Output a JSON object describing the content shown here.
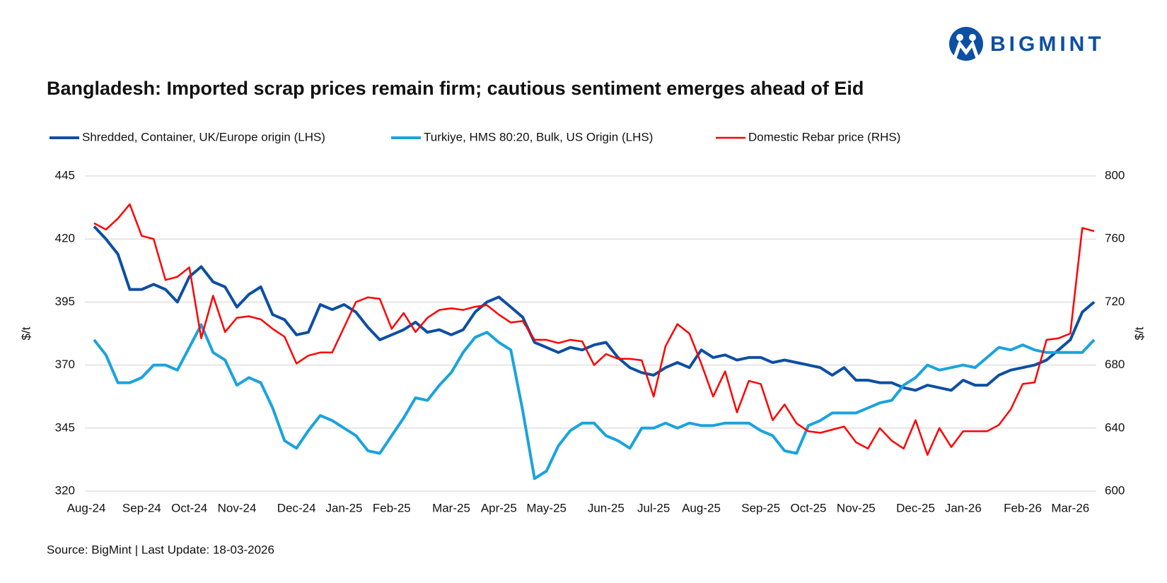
{
  "chart_data": {
    "type": "line",
    "logo": "BIGMINT",
    "title": "Bangladesh: Imported scrap prices remain firm; cautious sentiment emerges ahead of Eid",
    "source": "Source: BigMint | Last Update: 18-03-2026",
    "ylabel": "$/t",
    "y2label": "$/t",
    "categories": [
      "Aug-24",
      null,
      null,
      null,
      "Sep-24",
      null,
      null,
      null,
      "Oct-24",
      null,
      null,
      null,
      "Nov-24",
      null,
      null,
      null,
      null,
      "Dec-24",
      null,
      null,
      null,
      "Jan-25",
      null,
      null,
      null,
      "Feb-25",
      null,
      null,
      null,
      null,
      "Mar-25",
      null,
      null,
      null,
      "Apr-25",
      null,
      null,
      null,
      "May-25",
      null,
      null,
      null,
      null,
      "Jun-25",
      null,
      null,
      null,
      "Jul-25",
      null,
      null,
      null,
      "Aug-25",
      null,
      null,
      null,
      null,
      "Sep-25",
      null,
      null,
      null,
      "Oct-25",
      null,
      null,
      null,
      "Nov-25",
      null,
      null,
      null,
      null,
      "Dec-25",
      null,
      null,
      null,
      "Jan-26",
      null,
      null,
      null,
      null,
      "Feb-26",
      null,
      null,
      null,
      "Mar-26",
      null,
      null
    ],
    "series": [
      {
        "name": "Shredded, Container, UK/Europe origin (LHS)",
        "color": "#0d4fa3",
        "axis": "y",
        "values": [
          425,
          420,
          414,
          400,
          400,
          402,
          400,
          395,
          405,
          409,
          403,
          401,
          393,
          398,
          401,
          390,
          388,
          382,
          383,
          394,
          392,
          394,
          391,
          385,
          380,
          382,
          384,
          387,
          383,
          384,
          382,
          384,
          391,
          395,
          397,
          393,
          389,
          379,
          377,
          375,
          377,
          376,
          378,
          379,
          373,
          369,
          367,
          366,
          369,
          371,
          369,
          376,
          373,
          374,
          372,
          373,
          373,
          371,
          372,
          371,
          370,
          369,
          366,
          369,
          364,
          364,
          363,
          363,
          361,
          360,
          362,
          361,
          360,
          364,
          362,
          362,
          366,
          368,
          369,
          370,
          372,
          376,
          380,
          391,
          395
        ]
      },
      {
        "name": "Turkiye, HMS 80:20, Bulk, US Origin (LHS)",
        "color": "#1aa3dd",
        "axis": "y",
        "values": [
          380,
          374,
          363,
          363,
          365,
          370,
          370,
          368,
          377,
          386,
          375,
          372,
          362,
          365,
          363,
          353,
          340,
          337,
          344,
          350,
          348,
          345,
          342,
          336,
          335,
          342,
          349,
          357,
          356,
          362,
          367,
          375,
          381,
          383,
          379,
          376,
          352,
          325,
          328,
          338,
          344,
          347,
          347,
          342,
          340,
          337,
          345,
          345,
          347,
          345,
          347,
          346,
          346,
          347,
          347,
          347,
          344,
          342,
          336,
          335,
          346,
          348,
          351,
          351,
          351,
          353,
          355,
          356,
          362,
          365,
          370,
          368,
          369,
          370,
          369,
          373,
          377,
          376,
          378,
          376,
          375,
          375,
          375,
          375,
          380
        ]
      },
      {
        "name": "Domestic Rebar price (RHS)",
        "color": "#ff0000",
        "axis": "y2",
        "values": [
          770,
          766,
          773,
          782,
          762,
          760,
          734,
          736,
          742,
          697,
          724,
          701,
          710,
          711,
          709,
          703,
          698,
          681,
          686,
          688,
          688,
          704,
          720,
          723,
          722,
          703,
          713,
          701,
          710,
          715,
          716,
          715,
          717,
          718,
          712,
          707,
          708,
          696,
          696,
          694,
          696,
          695,
          680,
          687,
          684,
          684,
          683,
          660,
          692,
          706,
          700,
          681,
          660,
          676,
          650,
          670,
          668,
          645,
          655,
          643,
          638,
          637,
          639,
          641,
          631,
          627,
          640,
          632,
          627,
          645,
          623,
          640,
          628,
          638,
          638,
          638,
          642,
          652,
          668,
          669,
          696,
          697,
          700,
          767,
          765
        ]
      }
    ],
    "ylim": [
      320,
      445
    ],
    "yticks": [
      320,
      345,
      370,
      395,
      420,
      445
    ],
    "y2lim": [
      600,
      800
    ],
    "y2ticks": [
      600,
      640,
      680,
      720,
      760,
      800
    ],
    "grid": true,
    "legend": "top"
  }
}
